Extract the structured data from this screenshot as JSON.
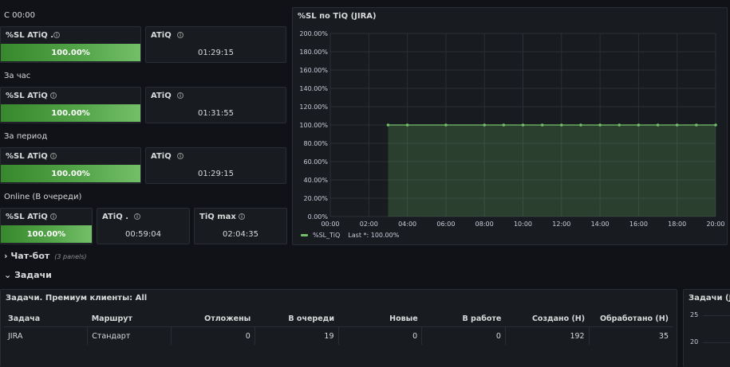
{
  "sections": {
    "since_midnight": "С 00:00",
    "per_hour": "За час",
    "per_period": "За период",
    "online": "Online (В очереди)"
  },
  "stats": {
    "r1": {
      "sl_title": "%SL ATiQ .",
      "sl_value": "100.00%",
      "sl_fill": 1.0,
      "atiq_title": "ATiQ",
      "atiq_value": "01:29:15"
    },
    "r2": {
      "sl_title": "%SL ATiQ",
      "sl_value": "100.00%",
      "sl_fill": 1.0,
      "atiq_title": "ATiQ",
      "atiq_value": "01:31:55"
    },
    "r3": {
      "sl_title": "%SL ATiQ",
      "sl_value": "100.00%",
      "sl_fill": 1.0,
      "atiq_title": "ATiQ",
      "atiq_value": "01:29:15"
    },
    "r4": {
      "sl_title": "%SL ATiQ",
      "sl_value": "100.00%",
      "sl_fill": 1.0,
      "atiq_title": "ATiQ .",
      "atiq_value": "00:59:04",
      "tiq_title": "TiQ max",
      "tiq_value": "02:04:35"
    }
  },
  "chart_data": {
    "type": "area",
    "title": "%SL по TiQ (JIRA)",
    "xlabel": "",
    "ylabel": "",
    "x_ticks": [
      "00:00",
      "02:00",
      "04:00",
      "06:00",
      "08:00",
      "10:00",
      "12:00",
      "14:00",
      "16:00",
      "18:00",
      "20:00"
    ],
    "y_ticks": [
      "0.00%",
      "20.00%",
      "40.00%",
      "60.00%",
      "80.00%",
      "100.00%",
      "120.00%",
      "140.00%",
      "160.00%",
      "180.00%",
      "200.00%"
    ],
    "xlim": [
      0,
      20
    ],
    "ylim": [
      0,
      200
    ],
    "grid": true,
    "legend_position": "bottom-left",
    "series": [
      {
        "name": "%SL_TiQ",
        "color": "#73bf69",
        "x": [
          3,
          4,
          6,
          8,
          9,
          10,
          11,
          12,
          13,
          14,
          15,
          16,
          17,
          18,
          19,
          20
        ],
        "y": [
          100,
          100,
          100,
          100,
          100,
          100,
          100,
          100,
          100,
          100,
          100,
          100,
          100,
          100,
          100,
          100
        ]
      }
    ],
    "legend_text": "%SL_TiQ",
    "legend_calc": "Last *: 100.00%"
  },
  "rows": {
    "chatbot": {
      "label": "Чат-бот",
      "meta": "(3 panels)",
      "chevron": "›"
    },
    "tasks": {
      "label": "Задачи",
      "chevron": "⌄"
    }
  },
  "table": {
    "title": "Задачи. Премиум клиенты: All",
    "headers": [
      "Задача",
      "Маршрут",
      "Отложены",
      "В очереди",
      "Новые",
      "В работе",
      "Создано (Н)",
      "Обработано (Н)"
    ],
    "rows": [
      [
        "JIRA",
        "Стандарт",
        "0",
        "19",
        "0",
        "0",
        "192",
        "35"
      ]
    ]
  },
  "side_panel": {
    "title": "Задачи (JIR",
    "y_ticks": [
      "25",
      "20"
    ]
  },
  "colors": {
    "accent_green": "#73bf69",
    "panel_bg": "#181b1f",
    "page_bg": "#111217"
  }
}
